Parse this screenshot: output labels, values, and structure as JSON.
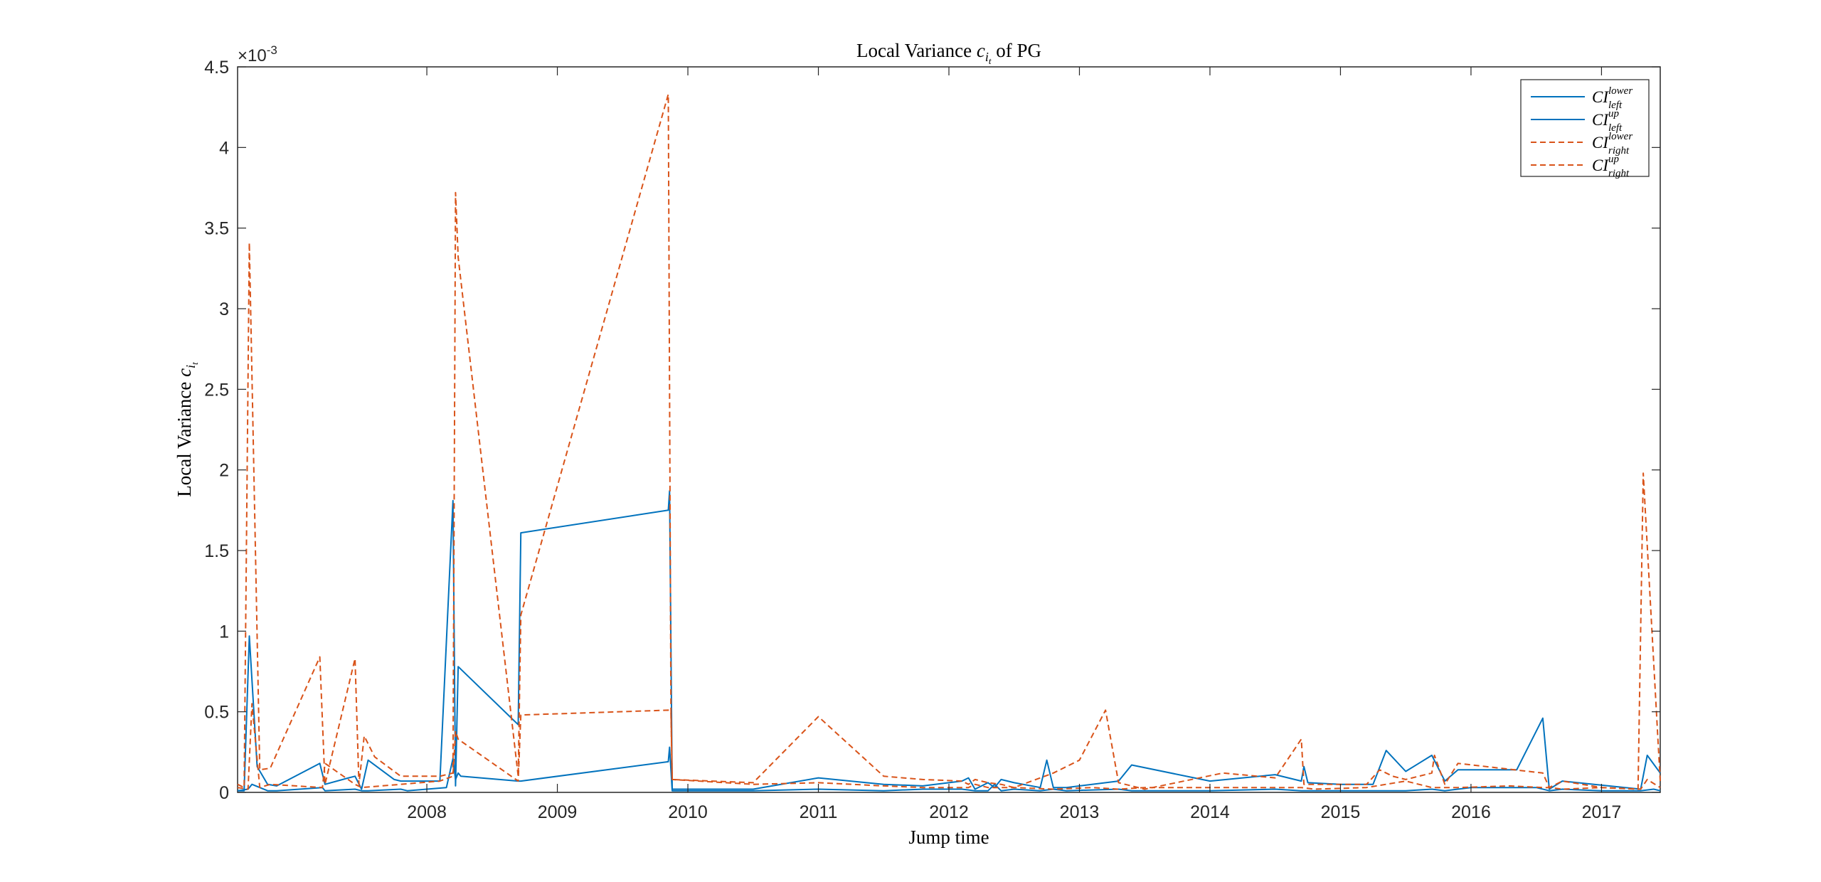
{
  "chart_data": {
    "type": "line",
    "title": {
      "prefix": "Local Variance ",
      "symbol": "c",
      "sub": "i",
      "subsub": "t",
      "suffix": " of PG"
    },
    "xlabel": "Jump time",
    "ylabel": {
      "prefix": "Local Variance ",
      "symbol": "c",
      "sub": "i",
      "subsub": "t"
    },
    "xlim": [
      2007.05,
      2017.95
    ],
    "ylim": [
      0,
      4.5
    ],
    "x_ticks": [
      "2008",
      "2009",
      "2010",
      "2011",
      "2012",
      "2013",
      "2014",
      "2015",
      "2016",
      "2017"
    ],
    "y_ticks": [
      "0",
      "0.5",
      "1",
      "1.5",
      "2",
      "2.5",
      "3",
      "3.5",
      "4",
      "4.5"
    ],
    "y_multiplier": {
      "base": "×10",
      "exp": "-3"
    },
    "grid": false,
    "legend_position": "top-right",
    "colors": {
      "blue": "#0072BD",
      "orange": "#D95319",
      "axis": "#262626"
    },
    "series": [
      {
        "name": {
          "base": "CI",
          "sup": "lower",
          "sub": "left"
        },
        "color": "#0072BD",
        "style": "solid",
        "x": [
          2007.05,
          2007.13,
          2007.16,
          2007.22,
          2007.28,
          2007.35,
          2007.7,
          2007.72,
          2007.95,
          2008.0,
          2008.05,
          2008.3,
          2008.35,
          2008.65,
          2008.7,
          2008.72,
          2008.74,
          2008.76,
          2009.2,
          2009.22,
          2010.35,
          2010.36,
          2010.38,
          2011.0,
          2011.5,
          2012.0,
          2012.3,
          2012.6,
          2012.7,
          2012.8,
          2012.85,
          2012.9,
          2013.0,
          2013.2,
          2013.3,
          2013.4,
          2013.8,
          2013.9,
          2014.5,
          2015.0,
          2015.2,
          2015.5,
          2015.7,
          2016.0,
          2016.2,
          2016.3,
          2016.5,
          2017.0,
          2017.1,
          2017.2,
          2017.5,
          2017.8,
          2017.9,
          2017.95
        ],
        "y": [
          0.01,
          0.02,
          0.05,
          0.03,
          0.01,
          0.01,
          0.03,
          0.01,
          0.02,
          0.01,
          0.01,
          0.02,
          0.01,
          0.03,
          0.21,
          0.08,
          0.12,
          0.1,
          0.07,
          0.07,
          0.19,
          0.28,
          0.01,
          0.01,
          0.02,
          0.01,
          0.02,
          0.02,
          0.01,
          0.01,
          0.05,
          0.01,
          0.02,
          0.01,
          0.02,
          0.01,
          0.02,
          0.01,
          0.01,
          0.02,
          0.01,
          0.01,
          0.01,
          0.01,
          0.02,
          0.01,
          0.03,
          0.03,
          0.01,
          0.02,
          0.01,
          0.01,
          0.02,
          0.01
        ]
      },
      {
        "name": {
          "base": "CI",
          "sup": "up",
          "sub": "left"
        },
        "color": "#0072BD",
        "style": "solid",
        "x": [
          2007.05,
          2007.1,
          2007.14,
          2007.2,
          2007.28,
          2007.35,
          2007.68,
          2007.72,
          2007.9,
          2007.95,
          2008.0,
          2008.05,
          2008.25,
          2008.3,
          2008.6,
          2008.7,
          2008.72,
          2008.74,
          2009.2,
          2009.22,
          2010.35,
          2010.36,
          2010.38,
          2011.0,
          2011.5,
          2012.0,
          2012.3,
          2012.6,
          2012.65,
          2012.7,
          2012.8,
          2012.85,
          2012.9,
          2013.0,
          2013.2,
          2013.25,
          2013.3,
          2013.4,
          2013.8,
          2013.9,
          2014.5,
          2015.0,
          2015.2,
          2015.22,
          2015.25,
          2015.5,
          2015.75,
          2015.85,
          2016.0,
          2016.1,
          2016.2,
          2016.3,
          2016.4,
          2016.85,
          2017.05,
          2017.1,
          2017.2,
          2017.8,
          2017.85,
          2017.95
        ],
        "y": [
          0.01,
          0.01,
          0.97,
          0.16,
          0.05,
          0.04,
          0.18,
          0.05,
          0.09,
          0.1,
          0.02,
          0.2,
          0.08,
          0.07,
          0.07,
          1.81,
          0.04,
          0.78,
          0.42,
          1.61,
          1.75,
          1.87,
          0.02,
          0.02,
          0.09,
          0.05,
          0.04,
          0.07,
          0.09,
          0.02,
          0.06,
          0.03,
          0.08,
          0.06,
          0.03,
          0.2,
          0.03,
          0.03,
          0.07,
          0.17,
          0.07,
          0.11,
          0.07,
          0.16,
          0.06,
          0.05,
          0.05,
          0.26,
          0.13,
          0.18,
          0.23,
          0.07,
          0.14,
          0.14,
          0.46,
          0.02,
          0.07,
          0.02,
          0.23,
          0.12
        ]
      },
      {
        "name": {
          "base": "CI",
          "sup": "lower",
          "sub": "right"
        },
        "color": "#D95319",
        "style": "dashed",
        "x": [
          2007.05,
          2007.13,
          2007.16,
          2007.22,
          2007.3,
          2007.7,
          2007.72,
          2007.95,
          2008.0,
          2008.3,
          2008.6,
          2008.7,
          2008.72,
          2008.74,
          2009.2,
          2009.22,
          2010.35,
          2010.37,
          2010.38,
          2011.0,
          2011.5,
          2012.0,
          2012.3,
          2012.65,
          2012.7,
          2012.8,
          2012.9,
          2013.0,
          2013.3,
          2013.6,
          2013.8,
          2014.0,
          2014.5,
          2015.0,
          2015.2,
          2015.3,
          2015.7,
          2016.0,
          2016.2,
          2016.3,
          2016.4,
          2016.8,
          2017.05,
          2017.1,
          2017.2,
          2017.5,
          2017.8,
          2017.85,
          2017.95
        ],
        "y": [
          0.03,
          0.02,
          0.55,
          0.03,
          0.05,
          0.03,
          0.18,
          0.05,
          0.03,
          0.05,
          0.07,
          0.1,
          0.38,
          0.33,
          0.07,
          0.48,
          0.51,
          0.5,
          0.08,
          0.05,
          0.06,
          0.04,
          0.03,
          0.03,
          0.05,
          0.03,
          0.03,
          0.03,
          0.02,
          0.03,
          0.02,
          0.03,
          0.03,
          0.03,
          0.03,
          0.02,
          0.03,
          0.07,
          0.03,
          0.03,
          0.03,
          0.04,
          0.03,
          0.03,
          0.02,
          0.03,
          0.02,
          0.08,
          0.03
        ]
      },
      {
        "name": {
          "base": "CI",
          "sup": "up",
          "sub": "right"
        },
        "color": "#D95319",
        "style": "dashed",
        "x": [
          2007.05,
          2007.1,
          2007.14,
          2007.22,
          2007.3,
          2007.68,
          2007.72,
          2007.95,
          2007.98,
          2008.02,
          2008.1,
          2008.3,
          2008.6,
          2008.7,
          2008.72,
          2008.74,
          2009.2,
          2009.22,
          2010.35,
          2010.37,
          2010.38,
          2011.0,
          2011.5,
          2012.0,
          2012.3,
          2012.6,
          2012.65,
          2012.7,
          2012.8,
          2012.9,
          2013.0,
          2013.3,
          2013.5,
          2013.7,
          2013.8,
          2014.0,
          2014.6,
          2015.0,
          2015.2,
          2015.22,
          2015.3,
          2015.7,
          2015.8,
          2015.9,
          2016.0,
          2016.2,
          2016.22,
          2016.3,
          2016.4,
          2017.05,
          2017.1,
          2017.2,
          2017.5,
          2017.78,
          2017.82,
          2017.95
        ],
        "y": [
          0.05,
          0.03,
          3.41,
          0.14,
          0.15,
          0.84,
          0.05,
          0.83,
          0.05,
          0.35,
          0.22,
          0.1,
          0.1,
          0.12,
          3.72,
          3.32,
          0.1,
          1.1,
          4.33,
          0.53,
          0.08,
          0.06,
          0.47,
          0.1,
          0.08,
          0.07,
          0.05,
          0.08,
          0.06,
          0.05,
          0.03,
          0.12,
          0.2,
          0.51,
          0.06,
          0.02,
          0.12,
          0.09,
          0.33,
          0.05,
          0.05,
          0.05,
          0.14,
          0.1,
          0.08,
          0.12,
          0.23,
          0.05,
          0.18,
          0.12,
          0.03,
          0.07,
          0.03,
          0.02,
          1.98,
          0.07
        ]
      }
    ]
  }
}
